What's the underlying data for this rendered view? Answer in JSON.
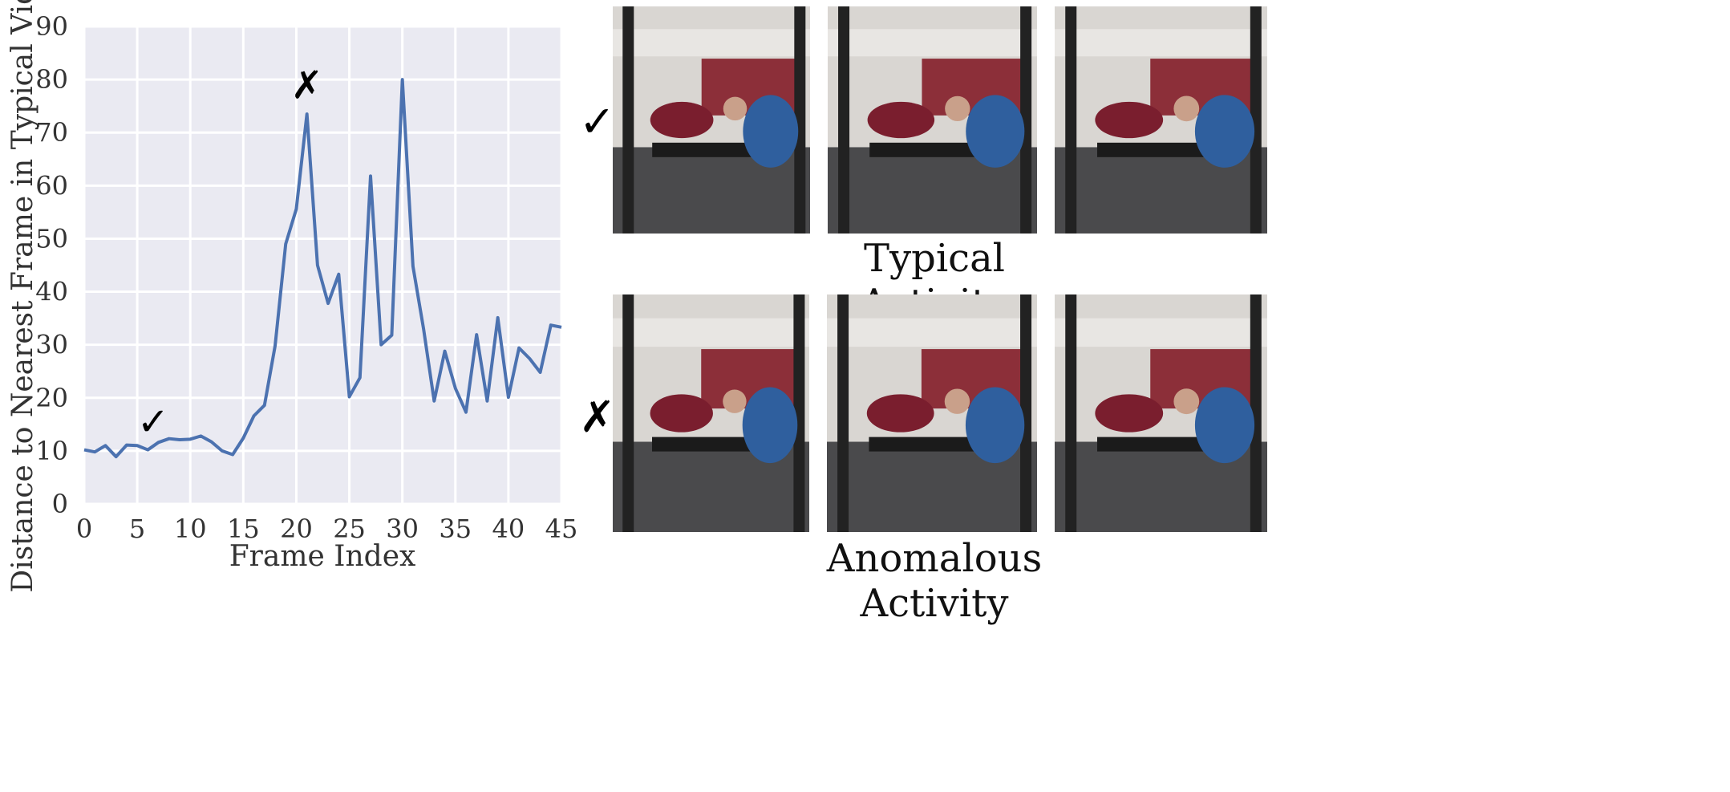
{
  "chart_data": {
    "type": "line",
    "xlabel": "Frame Index",
    "ylabel": "Distance to Nearest Frame in Typical Videos",
    "xlim": [
      0,
      45
    ],
    "ylim": [
      0,
      90
    ],
    "xticks": [
      "0",
      "5",
      "10",
      "15",
      "20",
      "25",
      "30",
      "35",
      "40",
      "45"
    ],
    "yticks": [
      "0",
      "10",
      "20",
      "30",
      "40",
      "50",
      "60",
      "70",
      "80",
      "90"
    ],
    "grid": true,
    "series_color": "#4c72b0",
    "background_color": "#eaeaf2",
    "x": [
      0,
      1,
      2,
      3,
      4,
      5,
      6,
      7,
      8,
      9,
      10,
      11,
      12,
      13,
      14,
      15,
      16,
      17,
      18,
      19,
      20,
      21,
      22,
      23,
      24,
      25,
      26,
      27,
      28,
      29,
      30,
      31,
      32,
      33,
      34,
      35,
      36,
      37,
      38,
      39,
      40,
      41,
      42,
      43,
      44,
      45
    ],
    "values": [
      10.2,
      9.8,
      11.0,
      8.9,
      11.1,
      11.0,
      10.2,
      11.6,
      12.3,
      12.1,
      12.2,
      12.8,
      11.7,
      10.0,
      9.3,
      12.4,
      16.6,
      18.6,
      29.8,
      49.0,
      55.6,
      73.5,
      45.0,
      37.8,
      43.3,
      20.2,
      23.8,
      61.8,
      30.0,
      31.8,
      80.0,
      44.8,
      33.0,
      19.4,
      28.8,
      21.8,
      17.3,
      31.9,
      19.4,
      35.1,
      20.1,
      29.4,
      27.4,
      24.8,
      33.7,
      33.3
    ],
    "annotations": [
      {
        "text": "✓",
        "x": 6.5,
        "y": 13
      },
      {
        "text": "✗",
        "x": 21,
        "y": 76.5
      }
    ]
  },
  "figure": {
    "check_mark": "✓",
    "cross_mark": "✗",
    "typical_caption": "Typical Activity",
    "anomalous_caption": "Anomalous Activity"
  }
}
